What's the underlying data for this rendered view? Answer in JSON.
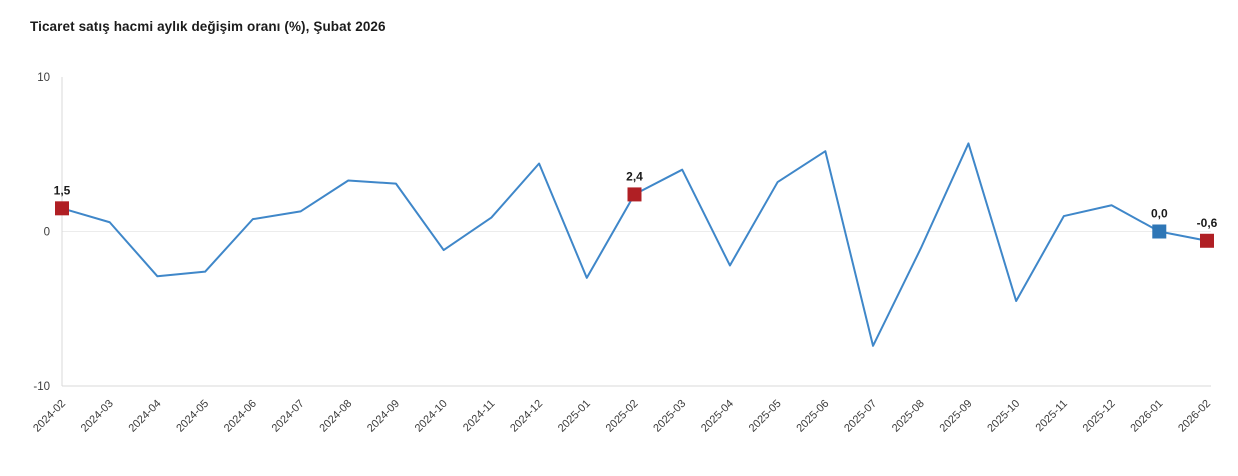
{
  "header": {
    "title": "Ticaret satış hacmi aylık değişim oranı (%), Şubat 2026"
  },
  "chart_data": {
    "type": "line",
    "title": "Ticaret satış hacmi aylık değişim oranı (%), Şubat 2026",
    "xlabel": "",
    "ylabel": "",
    "ylim": [
      -10,
      10
    ],
    "yticks": [
      10,
      0,
      -10
    ],
    "ytick_labels": [
      "10",
      "0",
      "-10"
    ],
    "grid": "zero-line-only",
    "legend": "none",
    "line_color": "#3f87c9",
    "axis_line_color": "#d9d9d9",
    "zero_line_color": "#ececec",
    "tick_label_color": "#3c3c3c",
    "data_label_color": "#1a1a1a",
    "categories": [
      "2024-02",
      "2024-03",
      "2024-04",
      "2024-05",
      "2024-06",
      "2024-07",
      "2024-08",
      "2024-09",
      "2024-10",
      "2024-11",
      "2024-12",
      "2025-01",
      "2025-02",
      "2025-03",
      "2025-04",
      "2025-05",
      "2025-06",
      "2025-07",
      "2025-08",
      "2025-09",
      "2025-10",
      "2025-11",
      "2025-12",
      "2026-01",
      "2026-02"
    ],
    "values": [
      1.5,
      0.6,
      -2.9,
      -2.6,
      0.8,
      1.3,
      3.3,
      3.1,
      -1.2,
      0.9,
      4.4,
      -3.0,
      2.4,
      4.0,
      -2.2,
      3.2,
      5.2,
      -7.4,
      -1.1,
      5.7,
      -4.5,
      1.0,
      1.7,
      0.0,
      -0.6
    ],
    "highlighted_points": [
      {
        "category": "2024-02",
        "value": 1.5,
        "label": "1,5",
        "marker_color": "#b01f24",
        "marker_shape": "square"
      },
      {
        "category": "2025-02",
        "value": 2.4,
        "label": "2,4",
        "marker_color": "#b01f24",
        "marker_shape": "square"
      },
      {
        "category": "2026-01",
        "value": 0.0,
        "label": "0,0",
        "marker_color": "#2e76b6",
        "marker_shape": "square"
      },
      {
        "category": "2026-02",
        "value": -0.6,
        "label": "-0,6",
        "marker_color": "#b01f24",
        "marker_shape": "square"
      }
    ]
  }
}
